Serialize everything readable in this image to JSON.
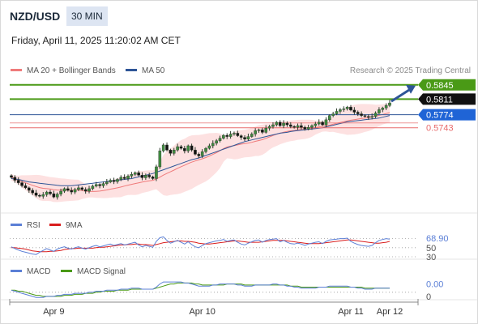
{
  "header": {
    "pair": "NZD/USD",
    "timeframe": "30 MIN",
    "datetime": "Friday, April 11, 2025 11:20:02 AM CET",
    "copyright": "Research © 2025 Trading Central"
  },
  "colors": {
    "candle": "#2e3b2e",
    "ma20": "#ef7b7b",
    "band_fill": "#fde1e1",
    "ma50": "#2e5597",
    "green_level": "#4a9a16",
    "blue_level": "#2e5597",
    "red_level": "#e86b6b",
    "rsi": "#5b7fd6",
    "rsi_ma": "#d91e1e",
    "macd": "#5b7fd6",
    "macd_signal": "#4a9a16",
    "arrow": "#2e5597"
  },
  "chart_data": [
    {
      "type": "candlestick",
      "title": "NZD/USD",
      "legend": [
        "MA 20 + Bollinger Bands",
        "MA 50"
      ],
      "x_ticks": [
        "Apr 9",
        "Apr 10",
        "Apr 11",
        "Apr 12"
      ],
      "ylim": [
        0.554,
        0.586
      ],
      "levels": [
        {
          "label": "0.5845",
          "value": 0.5845,
          "type": "resistance"
        },
        {
          "label": "0.5811",
          "value": 0.5811,
          "type": "resistance"
        },
        {
          "label": "0.5774",
          "value": 0.5774,
          "type": "pivot"
        },
        {
          "label": "0.5743",
          "value": 0.5743,
          "type": "support"
        }
      ],
      "close": [
        0.5625,
        0.5618,
        0.5612,
        0.5605,
        0.56,
        0.5594,
        0.5588,
        0.5582,
        0.558,
        0.5584,
        0.559,
        0.5586,
        0.5578,
        0.5585,
        0.5592,
        0.5598,
        0.5594,
        0.559,
        0.5596,
        0.56,
        0.5596,
        0.5592,
        0.5598,
        0.5604,
        0.5608,
        0.5605,
        0.561,
        0.5614,
        0.5618,
        0.5615,
        0.562,
        0.5625,
        0.5622,
        0.5628,
        0.5632,
        0.5636,
        0.563,
        0.5624,
        0.563,
        0.5626,
        0.5622,
        0.565,
        0.5688,
        0.5702,
        0.569,
        0.5682,
        0.569,
        0.5698,
        0.5694,
        0.5688,
        0.57,
        0.569,
        0.568,
        0.5676,
        0.5686,
        0.5694,
        0.57,
        0.5706,
        0.5712,
        0.5718,
        0.5725,
        0.5722,
        0.5728,
        0.573,
        0.5724,
        0.572,
        0.5716,
        0.5722,
        0.5728,
        0.5736,
        0.5738,
        0.5732,
        0.5742,
        0.5746,
        0.575,
        0.5756,
        0.5748,
        0.5754,
        0.575,
        0.5746,
        0.5744,
        0.5748,
        0.5744,
        0.574,
        0.5744,
        0.5748,
        0.5752,
        0.5756,
        0.575,
        0.5762,
        0.5772,
        0.5776,
        0.5782,
        0.5786,
        0.5788,
        0.5792,
        0.5785,
        0.578,
        0.5776,
        0.5772,
        0.577,
        0.5768,
        0.577,
        0.5778,
        0.5786,
        0.579,
        0.5796,
        0.5802
      ],
      "ma50": [
        0.5622,
        0.5621,
        0.562,
        0.5618,
        0.5616,
        0.5614,
        0.5613,
        0.5612,
        0.5611,
        0.561,
        0.5609,
        0.5608,
        0.5607,
        0.5606,
        0.5605,
        0.5605,
        0.5605,
        0.5605,
        0.5606,
        0.5607,
        0.5608,
        0.5609,
        0.561,
        0.5611,
        0.5612,
        0.5613,
        0.5614,
        0.5615,
        0.5616,
        0.5617,
        0.5618,
        0.5619,
        0.562,
        0.5621,
        0.5622,
        0.5624,
        0.5626,
        0.5628,
        0.563,
        0.5632,
        0.5634,
        0.5637,
        0.564,
        0.5643,
        0.5646,
        0.5649,
        0.5652,
        0.5655,
        0.5658,
        0.5661,
        0.5664,
        0.5667,
        0.5669,
        0.5671,
        0.5674,
        0.5677,
        0.568,
        0.5683,
        0.5686,
        0.5689,
        0.5692,
        0.5695,
        0.5698,
        0.5701,
        0.5704,
        0.5707,
        0.571,
        0.5712,
        0.5714,
        0.5716,
        0.5718,
        0.572,
        0.5722,
        0.5724,
        0.5726,
        0.5728,
        0.573,
        0.5731,
        0.5732,
        0.5734,
        0.5735,
        0.5736,
        0.5737,
        0.5738,
        0.5739,
        0.574,
        0.5741,
        0.5742,
        0.5743,
        0.5745,
        0.5747,
        0.5749,
        0.5751,
        0.5753,
        0.5755,
        0.5757,
        0.5758,
        0.5759,
        0.576,
        0.5761,
        0.5762,
        0.5763,
        0.5764,
        0.5765,
        0.5766,
        0.5768,
        0.577,
        0.5772
      ]
    },
    {
      "type": "line",
      "title": "RSI",
      "series": [
        {
          "name": "RSI",
          "values": [
            52,
            48,
            45,
            42,
            40,
            38,
            36,
            35,
            40,
            44,
            48,
            45,
            42,
            47,
            50,
            52,
            49,
            47,
            50,
            52,
            49,
            47,
            50,
            53,
            55,
            52,
            54,
            56,
            58,
            55,
            57,
            59,
            56,
            58,
            60,
            62,
            56,
            52,
            55,
            53,
            51,
            64,
            72,
            74,
            66,
            60,
            63,
            66,
            62,
            58,
            63,
            57,
            52,
            50,
            55,
            59,
            61,
            63,
            65,
            66,
            68,
            64,
            66,
            67,
            62,
            58,
            56,
            60,
            63,
            66,
            67,
            62,
            66,
            68,
            69,
            70,
            63,
            66,
            62,
            59,
            58,
            60,
            58,
            55,
            58,
            60,
            62,
            63,
            59,
            64,
            67,
            68,
            69,
            70,
            70,
            71,
            64,
            60,
            57,
            55,
            54,
            53,
            55,
            61,
            66,
            68,
            70,
            69
          ]
        },
        {
          "name": "9MA",
          "values": [
            50,
            50,
            49,
            48,
            47,
            45,
            43,
            42,
            41,
            41,
            41,
            42,
            42,
            43,
            44,
            46,
            47,
            48,
            48,
            49,
            49,
            49,
            49,
            49,
            50,
            51,
            51,
            52,
            53,
            54,
            55,
            56,
            56,
            57,
            57,
            58,
            58,
            57,
            57,
            56,
            55,
            57,
            59,
            61,
            62,
            63,
            64,
            65,
            65,
            64,
            64,
            63,
            62,
            60,
            59,
            58,
            58,
            59,
            60,
            61,
            62,
            63,
            64,
            65,
            65,
            64,
            63,
            62,
            62,
            62,
            62,
            63,
            64,
            65,
            66,
            66,
            66,
            66,
            65,
            64,
            63,
            62,
            61,
            60,
            59,
            59,
            59,
            59,
            60,
            61,
            62,
            63,
            64,
            65,
            66,
            67,
            67,
            66,
            65,
            64,
            63,
            62,
            61,
            60,
            60,
            61,
            62,
            64
          ]
        }
      ],
      "ylim": [
        30,
        80
      ],
      "y_ticks": [
        "50",
        "30"
      ],
      "current_label": "68.90"
    },
    {
      "type": "line",
      "title": "MACD",
      "series": [
        {
          "name": "MACD",
          "values": [
            0.0002,
            0.0001,
            0.0,
            -0.0001,
            -0.0002,
            -0.0003,
            -0.0004,
            -0.0005,
            -0.0005,
            -0.0005,
            -0.0004,
            -0.0004,
            -0.0004,
            -0.0003,
            -0.0003,
            -0.0002,
            -0.0002,
            -0.0002,
            -0.0001,
            -0.0001,
            -0.0001,
            -0.0001,
            0.0,
            0.0,
            0.0001,
            0.0001,
            0.0001,
            0.0002,
            0.0002,
            0.0002,
            0.0002,
            0.0003,
            0.0003,
            0.0003,
            0.0004,
            0.0004,
            0.0004,
            0.0003,
            0.0003,
            0.0003,
            0.0003,
            0.0005,
            0.0008,
            0.001,
            0.001,
            0.001,
            0.001,
            0.001,
            0.001,
            0.0009,
            0.0009,
            0.0008,
            0.0007,
            0.0006,
            0.0006,
            0.0006,
            0.0006,
            0.0007,
            0.0007,
            0.0008,
            0.0008,
            0.0008,
            0.0008,
            0.0008,
            0.0007,
            0.0007,
            0.0006,
            0.0006,
            0.0006,
            0.0007,
            0.0007,
            0.0007,
            0.0007,
            0.0007,
            0.0008,
            0.0008,
            0.0007,
            0.0007,
            0.0006,
            0.0006,
            0.0005,
            0.0005,
            0.0004,
            0.0004,
            0.0004,
            0.0004,
            0.0004,
            0.0005,
            0.0005,
            0.0005,
            0.0006,
            0.0006,
            0.0006,
            0.0006,
            0.0006,
            0.0006,
            0.0005,
            0.0005,
            0.0004,
            0.0004,
            0.0003,
            0.0003,
            0.0003,
            0.0004,
            0.0004,
            0.0004,
            0.0004,
            0.0004
          ]
        },
        {
          "name": "MACD Signal",
          "values": [
            0.0002,
            0.0002,
            0.0001,
            0.0001,
            0.0,
            -0.0001,
            -0.0002,
            -0.0003,
            -0.0003,
            -0.0004,
            -0.0004,
            -0.0004,
            -0.0004,
            -0.0004,
            -0.0004,
            -0.0003,
            -0.0003,
            -0.0003,
            -0.0002,
            -0.0002,
            -0.0002,
            -0.0001,
            -0.0001,
            -0.0001,
            0.0,
            0.0,
            0.0001,
            0.0001,
            0.0001,
            0.0001,
            0.0002,
            0.0002,
            0.0002,
            0.0002,
            0.0003,
            0.0003,
            0.0003,
            0.0003,
            0.0003,
            0.0003,
            0.0003,
            0.0004,
            0.0005,
            0.0006,
            0.0007,
            0.0008,
            0.0008,
            0.0009,
            0.0009,
            0.0009,
            0.0009,
            0.0009,
            0.0008,
            0.0008,
            0.0007,
            0.0007,
            0.0007,
            0.0007,
            0.0007,
            0.0007,
            0.0007,
            0.0008,
            0.0008,
            0.0008,
            0.0008,
            0.0008,
            0.0007,
            0.0007,
            0.0007,
            0.0007,
            0.0007,
            0.0007,
            0.0007,
            0.0007,
            0.0007,
            0.0007,
            0.0007,
            0.0007,
            0.0007,
            0.0006,
            0.0006,
            0.0006,
            0.0005,
            0.0005,
            0.0005,
            0.0005,
            0.0005,
            0.0005,
            0.0005,
            0.0005,
            0.0005,
            0.0005,
            0.0005,
            0.0005,
            0.0005,
            0.0005,
            0.0005,
            0.0005,
            0.0005,
            0.0005,
            0.0004,
            0.0004,
            0.0004,
            0.0004,
            0.0004,
            0.0004,
            0.0004,
            0.0004
          ]
        }
      ],
      "ylim": [
        -0.0008,
        0.0014
      ],
      "y_ticks": [
        "0"
      ],
      "current_label": "0.00"
    }
  ]
}
